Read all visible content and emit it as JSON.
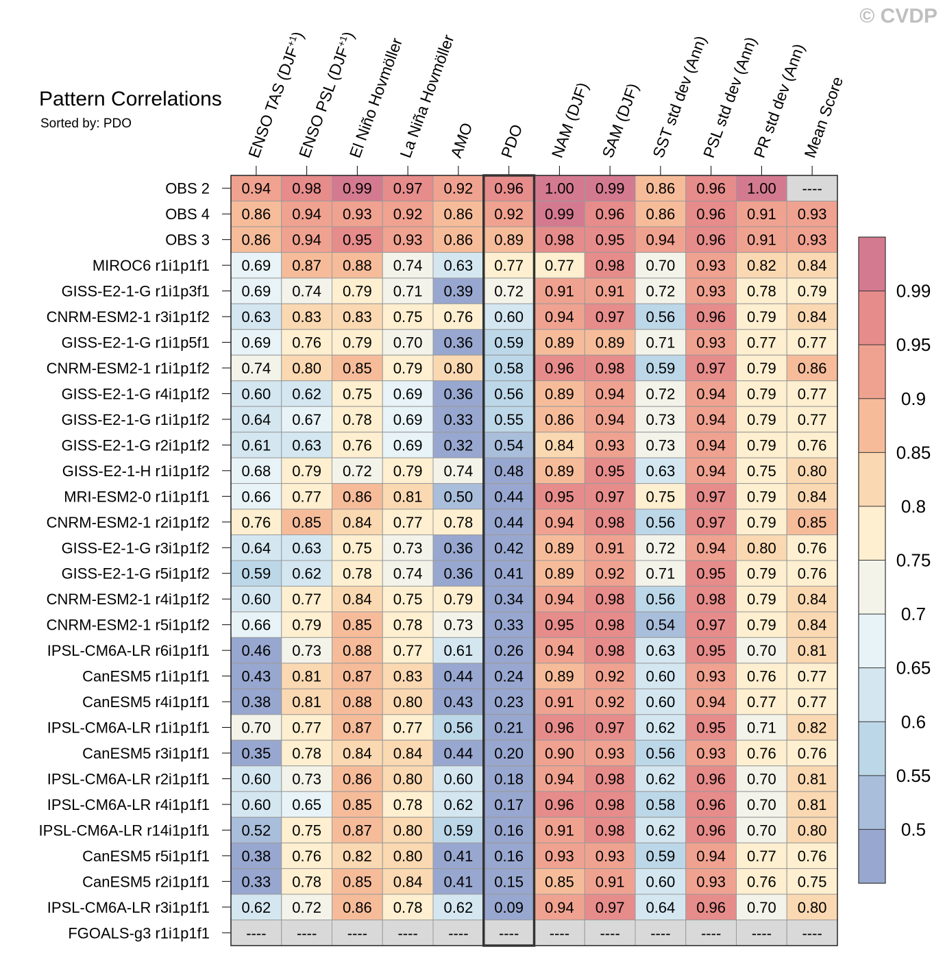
{
  "watermark": "© CVDP",
  "chart_data": {
    "type": "heatmap",
    "title": "Pattern Correlations",
    "subtitle": "Sorted by: PDO",
    "highlight_column": "PDO",
    "missing_label": "----",
    "columns": [
      {
        "label": "ENSO TAS (DJF",
        "sup": "+1",
        "suffix": ")"
      },
      {
        "label": "ENSO PSL (DJF",
        "sup": "+1",
        "suffix": ")"
      },
      {
        "label": "El Niño Hovmöller"
      },
      {
        "label": "La Niña Hovmöller"
      },
      {
        "label": "AMO"
      },
      {
        "label": "PDO"
      },
      {
        "label": "NAM (DJF)"
      },
      {
        "label": "SAM (DJF)"
      },
      {
        "label": "SST std dev (Ann)"
      },
      {
        "label": "PSL std dev (Ann)"
      },
      {
        "label": "PR std dev (Ann)"
      },
      {
        "label": "Mean Score"
      }
    ],
    "rows": [
      {
        "name": "OBS 2",
        "values": [
          0.94,
          0.98,
          0.99,
          0.97,
          0.92,
          0.96,
          1.0,
          0.99,
          0.86,
          0.96,
          1.0,
          null
        ]
      },
      {
        "name": "OBS 4",
        "values": [
          0.86,
          0.94,
          0.93,
          0.92,
          0.86,
          0.92,
          0.99,
          0.96,
          0.86,
          0.96,
          0.91,
          0.93
        ]
      },
      {
        "name": "OBS 3",
        "values": [
          0.86,
          0.94,
          0.95,
          0.93,
          0.86,
          0.89,
          0.98,
          0.95,
          0.94,
          0.96,
          0.91,
          0.93
        ]
      },
      {
        "name": "MIROC6 r1i1p1f1",
        "values": [
          0.69,
          0.87,
          0.88,
          0.74,
          0.63,
          0.77,
          0.77,
          0.98,
          0.7,
          0.93,
          0.82,
          0.84
        ]
      },
      {
        "name": "GISS-E2-1-G r1i1p3f1",
        "values": [
          0.69,
          0.74,
          0.79,
          0.71,
          0.39,
          0.72,
          0.91,
          0.91,
          0.72,
          0.93,
          0.78,
          0.79
        ]
      },
      {
        "name": "CNRM-ESM2-1 r3i1p1f2",
        "values": [
          0.63,
          0.83,
          0.83,
          0.75,
          0.76,
          0.6,
          0.94,
          0.97,
          0.56,
          0.96,
          0.79,
          0.84
        ]
      },
      {
        "name": "GISS-E2-1-G r1i1p5f1",
        "values": [
          0.69,
          0.76,
          0.79,
          0.7,
          0.36,
          0.59,
          0.89,
          0.89,
          0.71,
          0.93,
          0.77,
          0.77
        ]
      },
      {
        "name": "CNRM-ESM2-1 r1i1p1f2",
        "values": [
          0.74,
          0.8,
          0.85,
          0.79,
          0.8,
          0.58,
          0.96,
          0.98,
          0.59,
          0.97,
          0.79,
          0.86
        ]
      },
      {
        "name": "GISS-E2-1-G r4i1p1f2",
        "values": [
          0.6,
          0.62,
          0.75,
          0.69,
          0.36,
          0.56,
          0.89,
          0.94,
          0.72,
          0.94,
          0.79,
          0.77
        ]
      },
      {
        "name": "GISS-E2-1-G r1i1p1f2",
        "values": [
          0.64,
          0.67,
          0.78,
          0.69,
          0.33,
          0.55,
          0.86,
          0.94,
          0.73,
          0.94,
          0.79,
          0.77
        ]
      },
      {
        "name": "GISS-E2-1-G r2i1p1f2",
        "values": [
          0.61,
          0.63,
          0.76,
          0.69,
          0.32,
          0.54,
          0.84,
          0.93,
          0.73,
          0.94,
          0.79,
          0.76
        ]
      },
      {
        "name": "GISS-E2-1-H r1i1p1f2",
        "values": [
          0.68,
          0.79,
          0.72,
          0.79,
          0.74,
          0.48,
          0.89,
          0.95,
          0.63,
          0.94,
          0.75,
          0.8
        ]
      },
      {
        "name": "MRI-ESM2-0 r1i1p1f1",
        "values": [
          0.66,
          0.77,
          0.86,
          0.81,
          0.5,
          0.44,
          0.95,
          0.97,
          0.75,
          0.97,
          0.79,
          0.84
        ]
      },
      {
        "name": "CNRM-ESM2-1 r2i1p1f2",
        "values": [
          0.76,
          0.85,
          0.84,
          0.77,
          0.78,
          0.44,
          0.94,
          0.98,
          0.56,
          0.97,
          0.79,
          0.85
        ]
      },
      {
        "name": "GISS-E2-1-G r3i1p1f2",
        "values": [
          0.64,
          0.63,
          0.75,
          0.73,
          0.36,
          0.42,
          0.89,
          0.91,
          0.72,
          0.94,
          0.8,
          0.76
        ]
      },
      {
        "name": "GISS-E2-1-G r5i1p1f2",
        "values": [
          0.59,
          0.62,
          0.78,
          0.74,
          0.36,
          0.41,
          0.89,
          0.92,
          0.71,
          0.95,
          0.79,
          0.76
        ]
      },
      {
        "name": "CNRM-ESM2-1 r4i1p1f2",
        "values": [
          0.6,
          0.77,
          0.84,
          0.75,
          0.79,
          0.34,
          0.94,
          0.98,
          0.56,
          0.98,
          0.79,
          0.84
        ]
      },
      {
        "name": "CNRM-ESM2-1 r5i1p1f2",
        "values": [
          0.66,
          0.79,
          0.85,
          0.78,
          0.73,
          0.33,
          0.95,
          0.98,
          0.54,
          0.97,
          0.79,
          0.84
        ]
      },
      {
        "name": "IPSL-CM6A-LR r6i1p1f1",
        "values": [
          0.46,
          0.73,
          0.88,
          0.77,
          0.61,
          0.26,
          0.94,
          0.98,
          0.63,
          0.95,
          0.7,
          0.81
        ]
      },
      {
        "name": "CanESM5 r1i1p1f1",
        "values": [
          0.43,
          0.81,
          0.87,
          0.83,
          0.44,
          0.24,
          0.89,
          0.92,
          0.6,
          0.93,
          0.76,
          0.77
        ]
      },
      {
        "name": "CanESM5 r4i1p1f1",
        "values": [
          0.38,
          0.81,
          0.88,
          0.8,
          0.43,
          0.23,
          0.91,
          0.92,
          0.6,
          0.94,
          0.77,
          0.77
        ]
      },
      {
        "name": "IPSL-CM6A-LR r1i1p1f1",
        "values": [
          0.7,
          0.77,
          0.87,
          0.77,
          0.56,
          0.21,
          0.96,
          0.97,
          0.62,
          0.95,
          0.71,
          0.82
        ]
      },
      {
        "name": "CanESM5 r3i1p1f1",
        "values": [
          0.35,
          0.78,
          0.84,
          0.84,
          0.44,
          0.2,
          0.9,
          0.93,
          0.56,
          0.93,
          0.76,
          0.76
        ]
      },
      {
        "name": "IPSL-CM6A-LR r2i1p1f1",
        "values": [
          0.6,
          0.73,
          0.86,
          0.8,
          0.6,
          0.18,
          0.94,
          0.98,
          0.62,
          0.96,
          0.7,
          0.81
        ]
      },
      {
        "name": "IPSL-CM6A-LR r4i1p1f1",
        "values": [
          0.6,
          0.65,
          0.85,
          0.78,
          0.62,
          0.17,
          0.96,
          0.98,
          0.58,
          0.96,
          0.7,
          0.81
        ]
      },
      {
        "name": "IPSL-CM6A-LR r14i1p1f1",
        "values": [
          0.52,
          0.75,
          0.87,
          0.8,
          0.59,
          0.16,
          0.91,
          0.98,
          0.62,
          0.96,
          0.7,
          0.8
        ]
      },
      {
        "name": "CanESM5 r5i1p1f1",
        "values": [
          0.38,
          0.76,
          0.82,
          0.8,
          0.41,
          0.16,
          0.93,
          0.93,
          0.59,
          0.94,
          0.77,
          0.76
        ]
      },
      {
        "name": "CanESM5 r2i1p1f1",
        "values": [
          0.33,
          0.78,
          0.85,
          0.84,
          0.41,
          0.15,
          0.85,
          0.91,
          0.6,
          0.93,
          0.76,
          0.75
        ]
      },
      {
        "name": "IPSL-CM6A-LR r3i1p1f1",
        "values": [
          0.62,
          0.72,
          0.86,
          0.78,
          0.62,
          0.09,
          0.94,
          0.97,
          0.64,
          0.96,
          0.7,
          0.8
        ]
      },
      {
        "name": "FGOALS-g3 r1i1p1f1",
        "values": [
          null,
          null,
          null,
          null,
          null,
          null,
          null,
          null,
          null,
          null,
          null,
          null
        ]
      }
    ],
    "colorbar": {
      "boundaries": [
        0.5,
        0.55,
        0.6,
        0.65,
        0.7,
        0.75,
        0.8,
        0.85,
        0.9,
        0.95,
        0.99
      ],
      "labels": [
        "0.5",
        "0.55",
        "0.6",
        "0.65",
        "0.7",
        "0.75",
        "0.8",
        "0.85",
        "0.9",
        "0.95",
        "0.99"
      ],
      "colors": [
        "#98a7cf",
        "#a9bedb",
        "#bcd7e8",
        "#d4e7f1",
        "#e8f3f7",
        "#f3f3ea",
        "#fdefcf",
        "#fad8b1",
        "#f6bc9a",
        "#f0a290",
        "#e68c8b",
        "#d47a90"
      ],
      "missing_color": "#d9d9d9"
    }
  }
}
